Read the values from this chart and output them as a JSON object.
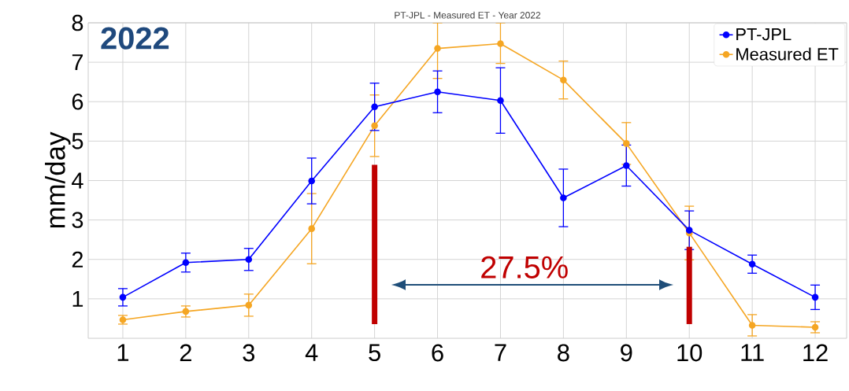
{
  "chart_data": {
    "type": "line",
    "title": "PT-JPL - Measured ET - Year 2022",
    "ylabel": "mm/day",
    "x": [
      1,
      2,
      3,
      4,
      5,
      6,
      7,
      8,
      9,
      10,
      11,
      12
    ],
    "series": [
      {
        "name": "PT-JPL",
        "color": "#0000ff",
        "values": [
          1.04,
          1.92,
          2.0,
          3.99,
          5.87,
          6.25,
          6.03,
          3.56,
          4.38,
          2.74,
          1.88,
          1.04
        ],
        "errors": [
          0.22,
          0.24,
          0.28,
          0.58,
          0.6,
          0.53,
          0.83,
          0.73,
          0.52,
          0.49,
          0.23,
          0.31
        ]
      },
      {
        "name": "Measured ET",
        "color": "#f5a623",
        "values": [
          0.47,
          0.68,
          0.84,
          2.78,
          5.39,
          7.35,
          7.47,
          6.55,
          4.94,
          2.67,
          0.33,
          0.28
        ],
        "errors": [
          0.11,
          0.14,
          0.28,
          0.89,
          0.78,
          [
            6.59,
            8.0
          ],
          [
            6.97,
            8.0
          ],
          0.48,
          0.53,
          0.68,
          0.27,
          0.14
        ]
      }
    ],
    "xlim": [
      0.45,
      12.5
    ],
    "ylim": [
      0,
      8
    ],
    "xticks": [
      1,
      2,
      3,
      4,
      5,
      6,
      7,
      8,
      9,
      10,
      11,
      12
    ],
    "yticks": [
      1,
      2,
      3,
      4,
      5,
      6,
      7,
      8
    ],
    "ref_lines": [
      {
        "axis": "x",
        "value": 5,
        "color": "#c00000"
      },
      {
        "axis": "x",
        "value": 10,
        "color": "#c00000"
      }
    ],
    "annotations": [
      "2022",
      "27.5%"
    ],
    "grid": true,
    "legend": "top right",
    "marker": "circle",
    "line_style": "solid"
  }
}
